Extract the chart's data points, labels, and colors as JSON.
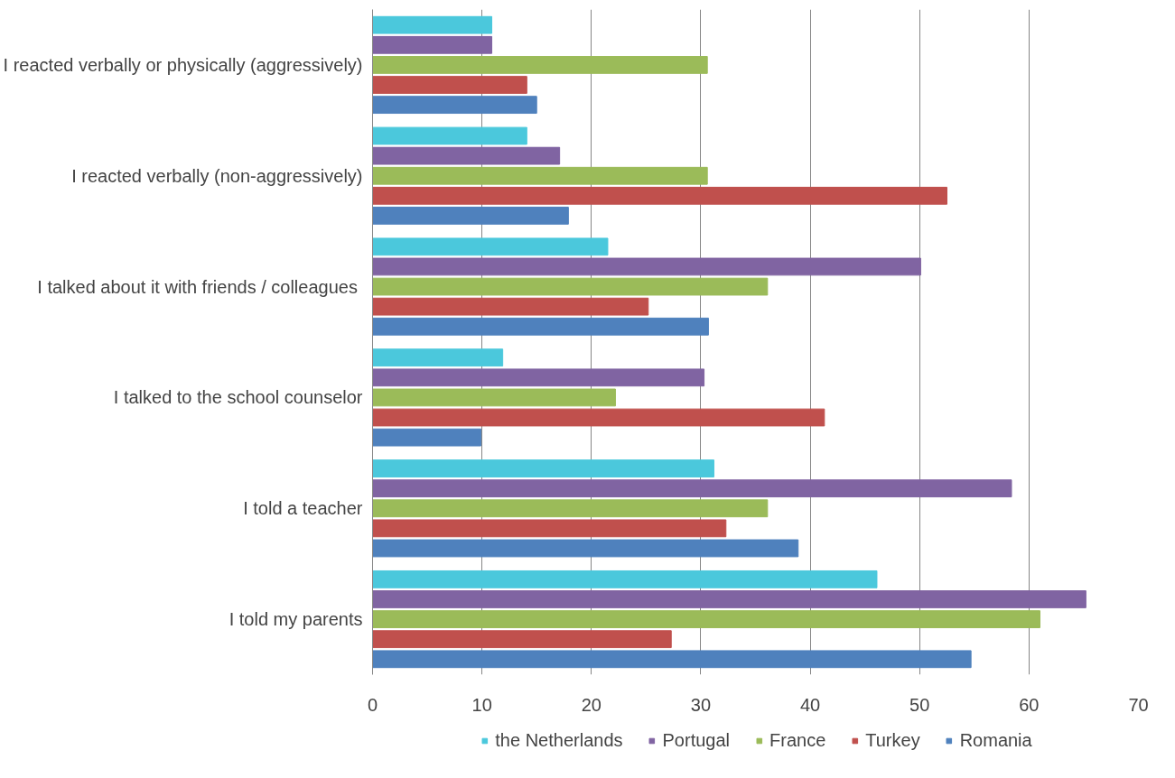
{
  "chart_data": {
    "type": "bar",
    "orientation": "horizontal",
    "categories": [
      "I reacted verbally or physically (aggressively)",
      "I reacted verbally (non-aggressively)",
      "I talked about it  with friends / colleagues",
      "I talked to the school counselor",
      "I told a teacher",
      "I told my parents"
    ],
    "series": [
      {
        "name": "the Netherlands",
        "color": "#4bc8dc",
        "values": [
          10.9,
          14.1,
          21.5,
          11.9,
          31.2,
          46.1
        ]
      },
      {
        "name": "Portugal",
        "color": "#8064a2",
        "values": [
          10.9,
          17.1,
          50.1,
          30.3,
          58.4,
          65.2
        ]
      },
      {
        "name": "France",
        "color": "#9bbb59",
        "values": [
          30.6,
          30.6,
          36.1,
          22.2,
          36.1,
          61.0
        ]
      },
      {
        "name": "Turkey",
        "color": "#c0504d",
        "values": [
          14.1,
          52.5,
          25.2,
          41.3,
          32.3,
          27.3
        ]
      },
      {
        "name": "Romania",
        "color": "#4f81bd",
        "values": [
          15.0,
          17.9,
          30.7,
          9.9,
          38.9,
          54.7
        ]
      }
    ],
    "xlim": [
      0,
      70
    ],
    "xticks": [
      0,
      10,
      20,
      30,
      40,
      50,
      60,
      70
    ],
    "grid": "x",
    "legend": "bottom"
  }
}
